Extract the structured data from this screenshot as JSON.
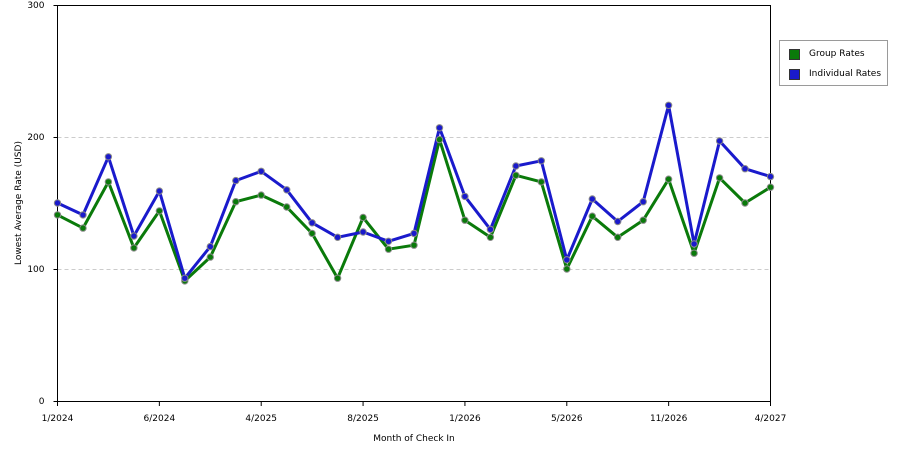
{
  "chart_data": {
    "type": "line",
    "xlabel": "Month of Check In",
    "ylabel": "Lowest Average Rate (USD)",
    "ylim": [
      0,
      300
    ],
    "yticks": [
      0,
      100,
      200,
      300
    ],
    "xtick_labels": [
      "1/2024",
      "6/2024",
      "4/2025",
      "8/2025",
      "1/2026",
      "5/2026",
      "11/2026",
      "4/2027"
    ],
    "xtick_indices": [
      0,
      4,
      8,
      12,
      16,
      20,
      24,
      28
    ],
    "grid": "horizontal-dashed",
    "legend_position": "right",
    "x_count": 29,
    "series": [
      {
        "name": "Group Rates",
        "color": "#0a7a0a",
        "values": [
          141,
          131,
          166,
          116,
          144,
          91,
          109,
          151,
          156,
          147,
          127,
          93,
          139,
          115,
          118,
          198,
          137,
          124,
          171,
          166,
          100,
          140,
          124,
          137,
          168,
          112,
          169,
          150,
          162
        ]
      },
      {
        "name": "Individual Rates",
        "color": "#1a1acc",
        "values": [
          150,
          141,
          185,
          125,
          159,
          93,
          117,
          167,
          174,
          160,
          135,
          124,
          128,
          121,
          127,
          207,
          155,
          130,
          178,
          182,
          107,
          153,
          136,
          151,
          224,
          119,
          197,
          176,
          170
        ]
      }
    ]
  }
}
